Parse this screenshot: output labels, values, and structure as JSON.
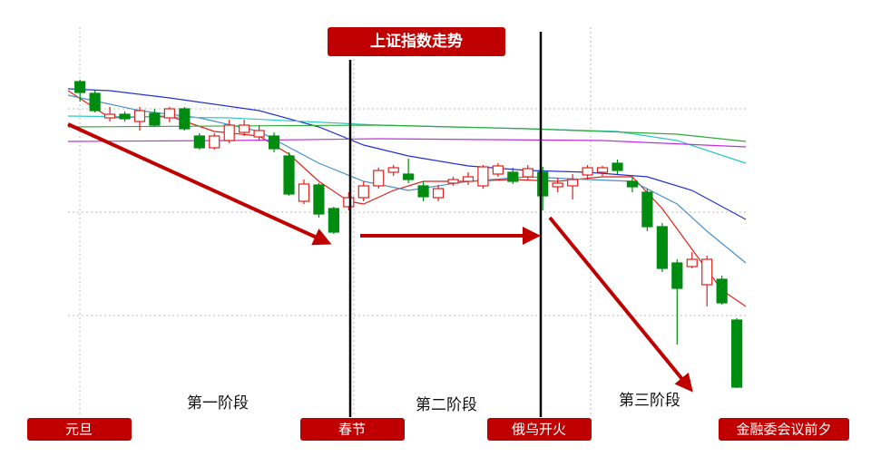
{
  "chart_data": {
    "type": "candlestick",
    "title": "上证指数走势",
    "phase_labels": [
      "第一阶段",
      "第二阶段",
      "第三阶段"
    ],
    "event_labels": [
      "元旦",
      "春节",
      "俄乌开火",
      "金融委会议前夕"
    ],
    "xlim": [
      -0.8,
      44.6
    ],
    "ylim": [
      0,
      460
    ],
    "up_color": "#e0201a",
    "down_color": "#008c10",
    "open": [
      400,
      387,
      360,
      364,
      356,
      365,
      360,
      370,
      340,
      327,
      335,
      344,
      339,
      340,
      318,
      268,
      286,
      260,
      262,
      272,
      285,
      300,
      298,
      285,
      272,
      288,
      290,
      285,
      298,
      300,
      295,
      300,
      284,
      285,
      297,
      300,
      310,
      290,
      278,
      240,
      200,
      196,
      176,
      182,
      137
    ],
    "high": [
      402,
      390,
      372,
      367,
      372,
      370,
      372,
      372,
      343,
      343,
      358,
      358,
      352,
      344,
      322,
      292,
      288,
      262,
      278,
      290,
      305,
      308,
      315,
      290,
      286,
      295,
      300,
      308,
      310,
      305,
      308,
      306,
      294,
      298,
      308,
      307,
      314,
      294,
      282,
      244,
      204,
      212,
      208,
      186,
      139
    ],
    "low": [
      378,
      366,
      356,
      356,
      346,
      350,
      355,
      346,
      325,
      325,
      332,
      340,
      335,
      322,
      274,
      265,
      250,
      232,
      258,
      268,
      282,
      296,
      288,
      268,
      268,
      285,
      286,
      282,
      295,
      287,
      292,
      258,
      278,
      270,
      292,
      296,
      298,
      278,
      235,
      190,
      110,
      194,
      152,
      154,
      62
    ],
    "close": [
      388,
      368,
      364,
      359,
      368,
      352,
      370,
      348,
      327,
      340,
      352,
      352,
      346,
      326,
      276,
      287,
      254,
      234,
      272,
      285,
      302,
      305,
      292,
      273,
      282,
      292,
      295,
      306,
      307,
      290,
      304,
      274,
      288,
      292,
      305,
      305,
      302,
      284,
      240,
      194,
      172,
      204,
      204,
      156,
      63
    ],
    "lines": [
      {
        "color": "#e0201a",
        "x": [
          -0.8,
          2,
          6,
          9,
          12,
          14,
          16,
          18,
          19,
          21,
          23,
          26,
          29,
          32,
          35,
          37,
          39,
          41,
          43,
          44.6
        ],
        "values": [
          390,
          360,
          362,
          345,
          340,
          320,
          290,
          268,
          265,
          280,
          290,
          290,
          292,
          290,
          295,
          295,
          260,
          215,
          170,
          152
        ]
      },
      {
        "color": "#4a8fc8",
        "x": [
          -0.8,
          4,
          8,
          12,
          16,
          19,
          22,
          26,
          30,
          34,
          37,
          40,
          42,
          44.6
        ],
        "values": [
          385,
          368,
          360,
          345,
          310,
          290,
          280,
          290,
          295,
          292,
          290,
          265,
          235,
          200
        ]
      },
      {
        "color": "#2233cc",
        "x": [
          -0.8,
          2,
          6,
          12,
          16,
          19,
          22,
          26,
          30,
          34,
          38,
          41,
          44.6
        ],
        "values": [
          392,
          390,
          382,
          368,
          350,
          330,
          318,
          307,
          302,
          300,
          295,
          280,
          248
        ]
      },
      {
        "color": "#2cc8c8",
        "x": [
          -0.8,
          10,
          20,
          30,
          36,
          40,
          44.6
        ],
        "values": [
          362,
          360,
          352,
          348,
          345,
          335,
          310
        ]
      },
      {
        "color": "#2eaa3a",
        "x": [
          -0.8,
          20,
          30,
          40,
          44.6
        ],
        "values": [
          350,
          352,
          348,
          342,
          334
        ]
      },
      {
        "color": "#c030e0",
        "x": [
          -0.8,
          10,
          20,
          35,
          44.6
        ],
        "values": [
          334,
          335,
          337,
          335,
          328
        ]
      }
    ]
  }
}
